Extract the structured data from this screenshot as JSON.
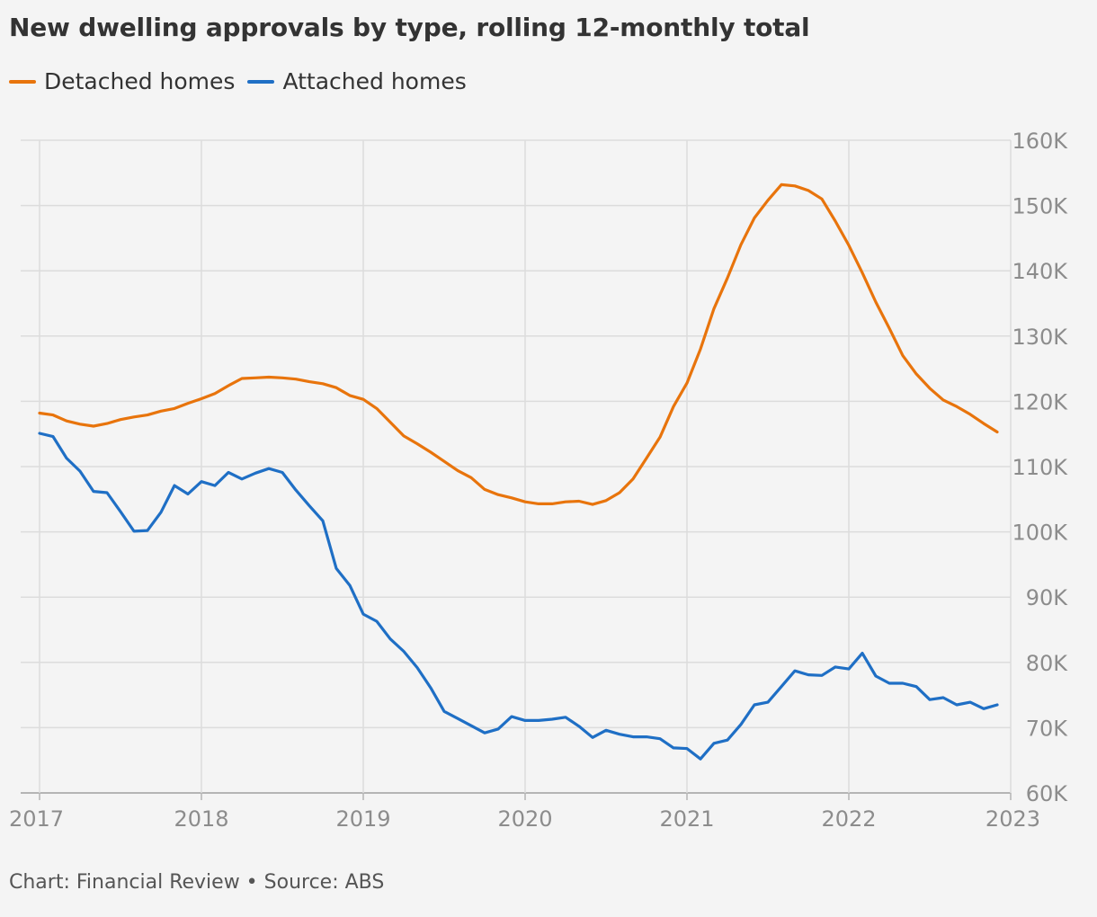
{
  "header": {
    "title": "New dwelling approvals by type, rolling 12-monthly total"
  },
  "legend": [
    {
      "label": "Detached homes",
      "color": "#e8740c"
    },
    {
      "label": "Attached homes",
      "color": "#1f6fc5"
    }
  ],
  "footer": {
    "credit": "Chart: Financial Review • Source: ABS"
  },
  "chart_data": {
    "type": "line",
    "title": "New dwelling approvals by type, rolling 12-monthly total",
    "xlabel": "",
    "ylabel": "",
    "xlim": [
      2017,
      2023
    ],
    "ylim": [
      60000,
      160000
    ],
    "x_ticks": [
      "2017",
      "2018",
      "2019",
      "2020",
      "2021",
      "2022",
      "2023"
    ],
    "y_ticks": [
      "60K",
      "70K",
      "80K",
      "90K",
      "100K",
      "110K",
      "120K",
      "130K",
      "140K",
      "150K",
      "160K"
    ],
    "y_axis_side": "right",
    "grid": true,
    "legend_position": "top-left",
    "x_resolution": "monthly, Jan 2017 – Dec 2022",
    "series": [
      {
        "name": "Detached homes",
        "color": "#e8740c",
        "values": [
          118200,
          117900,
          117000,
          116500,
          116200,
          116600,
          117200,
          117600,
          117900,
          118500,
          118900,
          119700,
          120400,
          121200,
          122400,
          123500,
          123600,
          123700,
          123600,
          123400,
          123000,
          122700,
          122100,
          120900,
          120300,
          118900,
          116800,
          114700,
          113500,
          112200,
          110800,
          109400,
          108300,
          106500,
          105700,
          105200,
          104600,
          104300,
          104300,
          104600,
          104700,
          104200,
          104800,
          106000,
          108100,
          111300,
          114500,
          119200,
          122800,
          128000,
          134200,
          138900,
          144000,
          148100,
          150800,
          153200,
          153000,
          152300,
          151000,
          147600,
          143900,
          139700,
          135200,
          131200,
          127000,
          124200,
          122000,
          120200,
          119200,
          118000,
          116600,
          115300
        ]
      },
      {
        "name": "Attached homes",
        "color": "#1f6fc5",
        "values": [
          115100,
          114600,
          111300,
          109300,
          106200,
          106000,
          103100,
          100100,
          100200,
          103000,
          107100,
          105800,
          107700,
          107100,
          109100,
          108100,
          109000,
          109700,
          109100,
          106400,
          104000,
          101700,
          94400,
          91800,
          87400,
          86300,
          83600,
          81700,
          79200,
          76100,
          72500,
          71400,
          70300,
          69200,
          69800,
          71700,
          71100,
          71100,
          71300,
          71600,
          70200,
          68500,
          69600,
          69000,
          68600,
          68600,
          68300,
          66900,
          66800,
          65200,
          67600,
          68100,
          70500,
          73500,
          73900,
          76300,
          78700,
          78100,
          78000,
          79300,
          79000,
          81400,
          77900,
          76800,
          76800,
          76300,
          74300,
          74600,
          73500,
          73900,
          72900,
          73500
        ]
      }
    ]
  }
}
